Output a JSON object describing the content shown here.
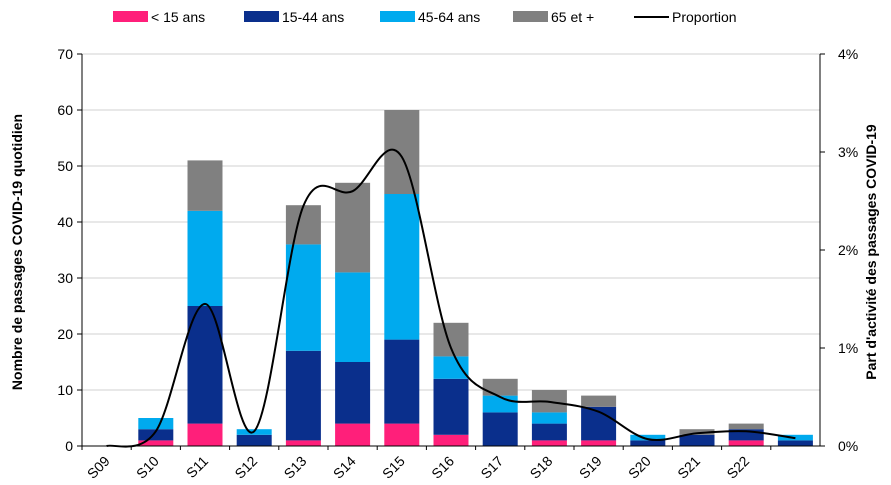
{
  "chart_data": {
    "type": "bar",
    "categories": [
      "S09",
      "S10",
      "S11",
      "S12",
      "S13",
      "S14",
      "S15",
      "S16",
      "S17",
      "S18",
      "S19",
      "S20",
      "S21",
      "S22",
      ""
    ],
    "series": [
      {
        "name": "< 15 ans",
        "color": "#ff1f7a",
        "values": [
          0,
          1,
          4,
          0,
          1,
          4,
          4,
          2,
          0,
          1,
          1,
          0,
          0,
          1,
          0
        ]
      },
      {
        "name": "15-44 ans",
        "color": "#0a2f8c",
        "values": [
          0,
          2,
          21,
          2,
          16,
          11,
          15,
          10,
          6,
          3,
          6,
          1,
          2,
          2,
          1
        ]
      },
      {
        "name": "45-64 ans",
        "color": "#00aaee",
        "values": [
          0,
          2,
          17,
          1,
          19,
          16,
          26,
          4,
          3,
          2,
          0,
          1,
          0,
          0,
          1
        ]
      },
      {
        "name": "65 et +",
        "color": "#808080",
        "values": [
          0,
          0,
          9,
          0,
          7,
          16,
          15,
          6,
          3,
          4,
          2,
          0,
          1,
          1,
          0
        ]
      }
    ],
    "line": {
      "name": "Proportion",
      "color": "#000000",
      "values": [
        0.0,
        0.15,
        1.45,
        0.15,
        2.45,
        2.6,
        2.95,
        1.0,
        0.5,
        0.45,
        0.35,
        0.07,
        0.13,
        0.15,
        0.08
      ]
    },
    "ylabel": "Nombre de passages COVID-19 quotidien",
    "y2label": "Part d'activité des passages COVID-19",
    "ylim": [
      0,
      70
    ],
    "yticks": [
      "0",
      "10",
      "20",
      "30",
      "40",
      "50",
      "60",
      "70"
    ],
    "y2lim": [
      0,
      4
    ],
    "y2ticks": [
      "0%",
      "1%",
      "2%",
      "3%",
      "4%"
    ],
    "grid": true,
    "legend_position": "top"
  }
}
